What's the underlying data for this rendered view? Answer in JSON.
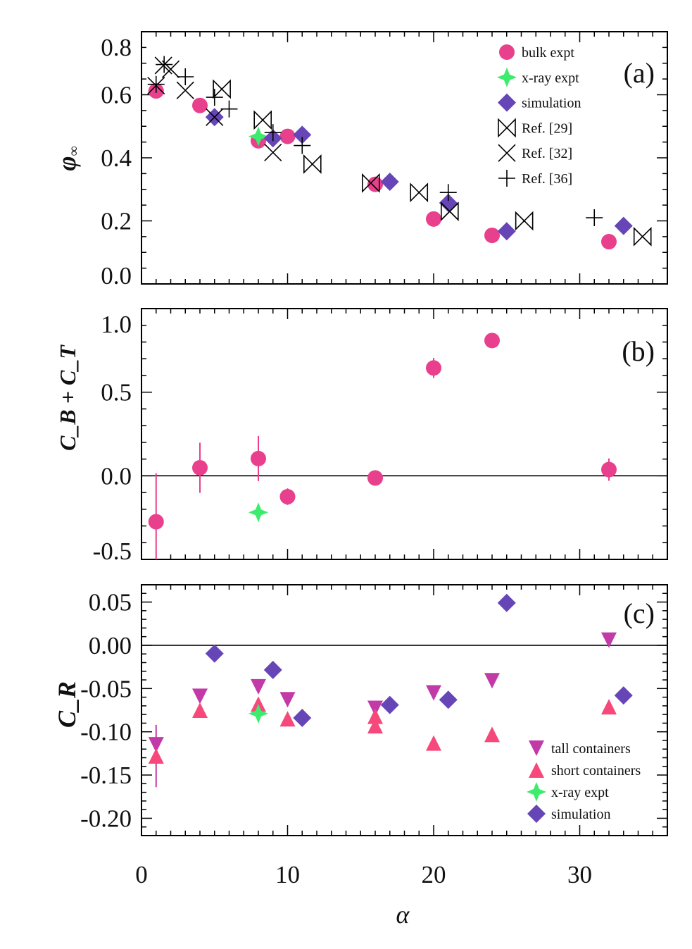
{
  "colors": {
    "bulk": "#e8408c",
    "xray": "#3cec6c",
    "sim": "#6646b6",
    "tall": "#c23aa8",
    "short": "#f7487c",
    "ref": "#000000"
  },
  "chart_data": [
    {
      "type": "scatter",
      "panel_label": "(a)",
      "ylabel": "φ∞",
      "xlim": [
        0,
        36
      ],
      "ylim": [
        0,
        0.8
      ],
      "yticks": [
        0.0,
        0.2,
        0.4,
        0.6,
        0.8
      ],
      "ytick_labels": [
        "0.0",
        "0.2",
        "0.4",
        "0.6",
        "0.8"
      ],
      "legend_placement": "top-right",
      "series": [
        {
          "name": "bulk expt",
          "marker": "circle",
          "color_key": "bulk",
          "x": [
            1,
            4,
            8,
            10,
            16,
            20,
            24,
            32
          ],
          "y": [
            0.612,
            0.566,
            0.454,
            0.468,
            0.316,
            0.206,
            0.154,
            0.134
          ]
        },
        {
          "name": "x-ray expt",
          "marker": "star4",
          "color_key": "xray",
          "x": [
            8
          ],
          "y": [
            0.468
          ]
        },
        {
          "name": "simulation",
          "marker": "diamond",
          "color_key": "sim",
          "x": [
            5,
            9,
            11,
            17,
            21,
            25,
            33
          ],
          "y": [
            0.529,
            0.462,
            0.473,
            0.324,
            0.257,
            0.167,
            0.184
          ]
        },
        {
          "name": "Ref. [29]",
          "marker": "bowtie",
          "color_key": "ref",
          "x": [
            5.5,
            8.3,
            11.7,
            15.7,
            19,
            21.1,
            26.2,
            34.3
          ],
          "y": [
            0.618,
            0.52,
            0.38,
            0.32,
            0.29,
            0.23,
            0.2,
            0.15
          ]
        },
        {
          "name": "Ref. [32]",
          "marker": "x",
          "color_key": "ref",
          "x": [
            1,
            1.5,
            2,
            3,
            5,
            9,
            21.1
          ],
          "y": [
            0.629,
            0.693,
            0.681,
            0.614,
            0.529,
            0.417,
            0.23
          ]
        },
        {
          "name": "Ref. [36]",
          "marker": "plus",
          "color_key": "ref",
          "x": [
            1,
            1.55,
            3,
            5,
            6,
            9,
            11,
            21,
            31
          ],
          "y": [
            0.633,
            0.696,
            0.657,
            0.592,
            0.555,
            0.48,
            0.439,
            0.29,
            0.21
          ]
        }
      ]
    },
    {
      "type": "scatter",
      "panel_label": "(b)",
      "ylabel": "C_B + C_T",
      "xlim": [
        0,
        36
      ],
      "ylim": [
        -0.5,
        1.0
      ],
      "yticks": [
        -0.5,
        0.0,
        0.5,
        1.0
      ],
      "ytick_labels": [
        "-0.5",
        "0.0",
        "0.5",
        "1.0"
      ],
      "zero_line": true,
      "series": [
        {
          "name": "bulk expt",
          "marker": "circle",
          "color_key": "bulk",
          "x": [
            1,
            4,
            8,
            10,
            16,
            20,
            24,
            32
          ],
          "y": [
            -0.275,
            0.048,
            0.103,
            -0.125,
            -0.013,
            0.645,
            0.809,
            0.037
          ],
          "yerr": [
            0.29,
            0.15,
            0.135,
            0.05,
            0.0,
            0.06,
            0.0,
            0.067
          ]
        },
        {
          "name": "x-ray expt",
          "marker": "star4",
          "color_key": "xray",
          "x": [
            8
          ],
          "y": [
            -0.219
          ]
        }
      ]
    },
    {
      "type": "scatter",
      "panel_label": "(c)",
      "ylabel": "C_R",
      "xlabel": "α",
      "xlim": [
        0,
        36
      ],
      "ylim": [
        -0.22,
        0.07
      ],
      "xticks": [
        0,
        10,
        20,
        30
      ],
      "xtick_labels": [
        "0",
        "10",
        "20",
        "30"
      ],
      "yticks": [
        -0.2,
        -0.15,
        -0.1,
        -0.05,
        0.0,
        0.05
      ],
      "ytick_labels": [
        "-0.20",
        "-0.15",
        "-0.10",
        "-0.05",
        "0.00",
        "0.05"
      ],
      "zero_line": true,
      "legend_placement": "bottom-right",
      "series": [
        {
          "name": "tall containers",
          "marker": "tri-down",
          "color_key": "tall",
          "x": [
            1,
            4,
            8,
            10,
            16,
            20,
            24,
            32
          ],
          "y": [
            -0.115,
            -0.059,
            -0.048,
            -0.063,
            -0.073,
            -0.055,
            -0.041,
            0.006
          ]
        },
        {
          "name": "short containers",
          "marker": "tri-up",
          "color_key": "short",
          "x": [
            1,
            4,
            8,
            10,
            16,
            16,
            20,
            24,
            32
          ],
          "y": [
            -0.128,
            -0.075,
            -0.068,
            -0.085,
            -0.082,
            -0.093,
            -0.113,
            -0.103,
            -0.071
          ],
          "yerr": [
            0.036,
            0,
            0,
            0,
            0,
            0,
            0,
            0,
            0
          ]
        },
        {
          "name": "x-ray expt",
          "marker": "star4",
          "color_key": "xray",
          "x": [
            8
          ],
          "y": [
            -0.079
          ]
        },
        {
          "name": "simulation",
          "marker": "diamond",
          "color_key": "sim",
          "x": [
            5,
            9,
            11,
            17,
            21,
            25,
            33
          ],
          "y": [
            -0.0095,
            -0.0285,
            -0.084,
            -0.069,
            -0.063,
            0.049,
            -0.058
          ]
        }
      ]
    }
  ]
}
